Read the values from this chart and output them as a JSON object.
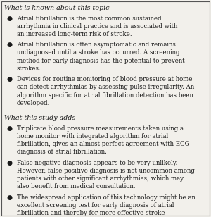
{
  "title1": "What is known about this topic",
  "title2": "What this study adds",
  "bullets_section1": [
    "Atrial fibrillation is the most common sustained\narrhythmia in clinical practice and is associated with\nan increased long-term risk of stroke.",
    "Atrial fibrillation is often asymptomatic and remains\nundiagnosed until a stroke has occurred. A screening\nmethod for early diagnosis has the potential to prevent\nstrokes.",
    "Devices for routine monitoring of blood pressure at home\ncan detect arrhythmias by assessing pulse irregularity. An\nalgorithm specific for atrial fibrillation detection has been\ndeveloped."
  ],
  "bullets_section2": [
    "Triplicate blood pressure measurements taken using a\nhome monitor with integrated algorithm for atrial\nfibrillation, gives an almost perfect agreement with ECG\ndiagnosis of atrial fibrillation.",
    "False negative diagnosis appears to be very unlikely.\nHowever, false positive diagnosis is not uncommon among\npatients with other significant arrhythmias, which may\nalso benefit from medical consultation.",
    "The widespread application of this technology might be an\nexcellent screening test for early diagnosis of atrial\nfibrillation and thereby for more effective stroke\nprevention."
  ],
  "bg_color": "#f2f0eb",
  "text_color": "#1a1a1a",
  "border_color": "#555555",
  "title_fontsize": 6.8,
  "body_fontsize": 6.2,
  "bullet_char": "●",
  "fig_width": 3.0,
  "fig_height": 3.08,
  "dpi": 100
}
